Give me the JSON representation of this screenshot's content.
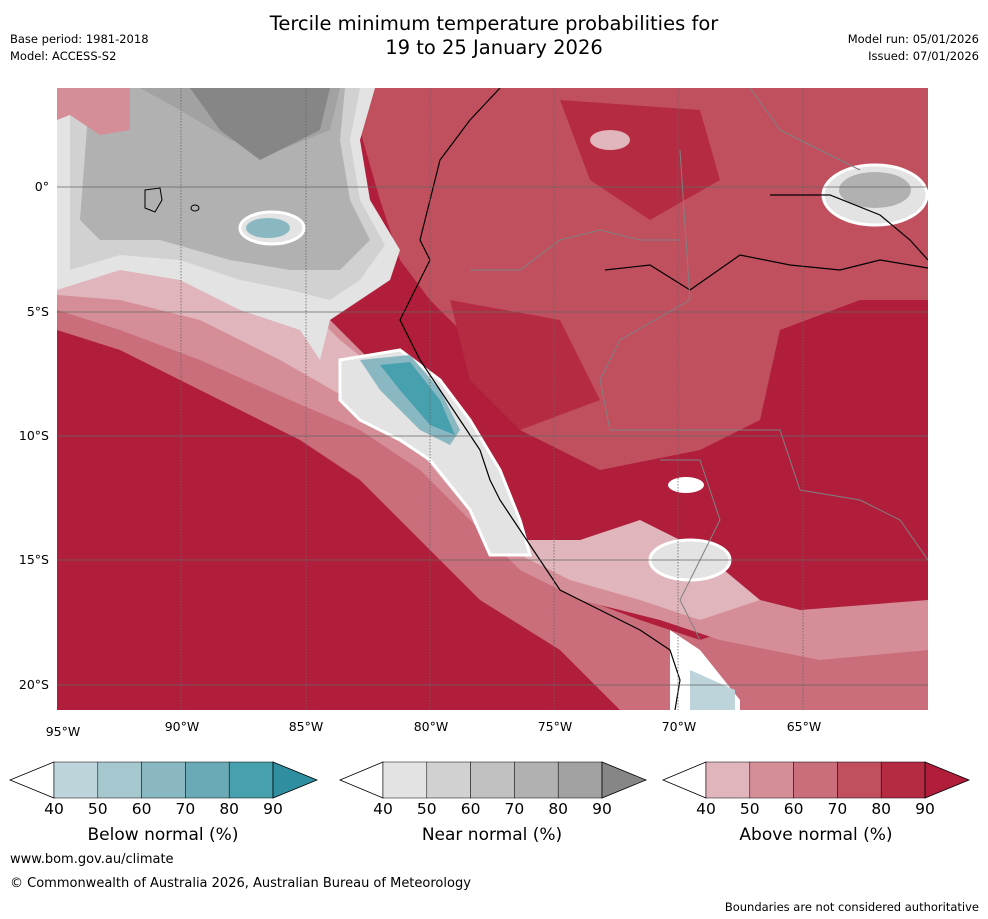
{
  "header": {
    "title_line1": "Tercile minimum temperature probabilities for",
    "title_line2": "19 to 25 January 2026",
    "base_period": "Base period: 1981-2018",
    "model": "Model: ACCESS-S2",
    "model_run": "Model run: 05/01/2026",
    "issued": "Issued: 07/01/2026"
  },
  "map": {
    "lon_labels": [
      "95°W",
      "90°W",
      "85°W",
      "80°W",
      "75°W",
      "70°W",
      "65°W"
    ],
    "lat_labels": [
      "0°",
      "5°S",
      "10°S",
      "15°S",
      "20°S"
    ]
  },
  "colorbars": [
    {
      "title": "Below normal (%)",
      "ticks": [
        "40",
        "50",
        "60",
        "70",
        "80",
        "90"
      ],
      "colors": [
        "#ffffff",
        "#bcd4da",
        "#a5c7ce",
        "#89b8c3",
        "#6aaab6",
        "#47a0ae",
        "#2f8fa0"
      ]
    },
    {
      "title": "Near normal (%)",
      "ticks": [
        "40",
        "50",
        "60",
        "70",
        "80",
        "90"
      ],
      "colors": [
        "#ffffff",
        "#e3e3e3",
        "#d1d1d1",
        "#c1c1c1",
        "#b1b1b1",
        "#a2a2a2",
        "#868686"
      ]
    },
    {
      "title": "Above normal (%)",
      "ticks": [
        "40",
        "50",
        "60",
        "70",
        "80",
        "90"
      ],
      "colors": [
        "#ffffff",
        "#e0b5bb",
        "#d58e98",
        "#c96e7a",
        "#c1505f",
        "#b52c42",
        "#b01e3c"
      ]
    }
  ],
  "footer": {
    "url": "www.bom.gov.au/climate",
    "copyright": "© Commonwealth of Australia 2026, Australian Bureau of Meteorology",
    "disclaimer": "Boundaries are not considered authoritative"
  }
}
